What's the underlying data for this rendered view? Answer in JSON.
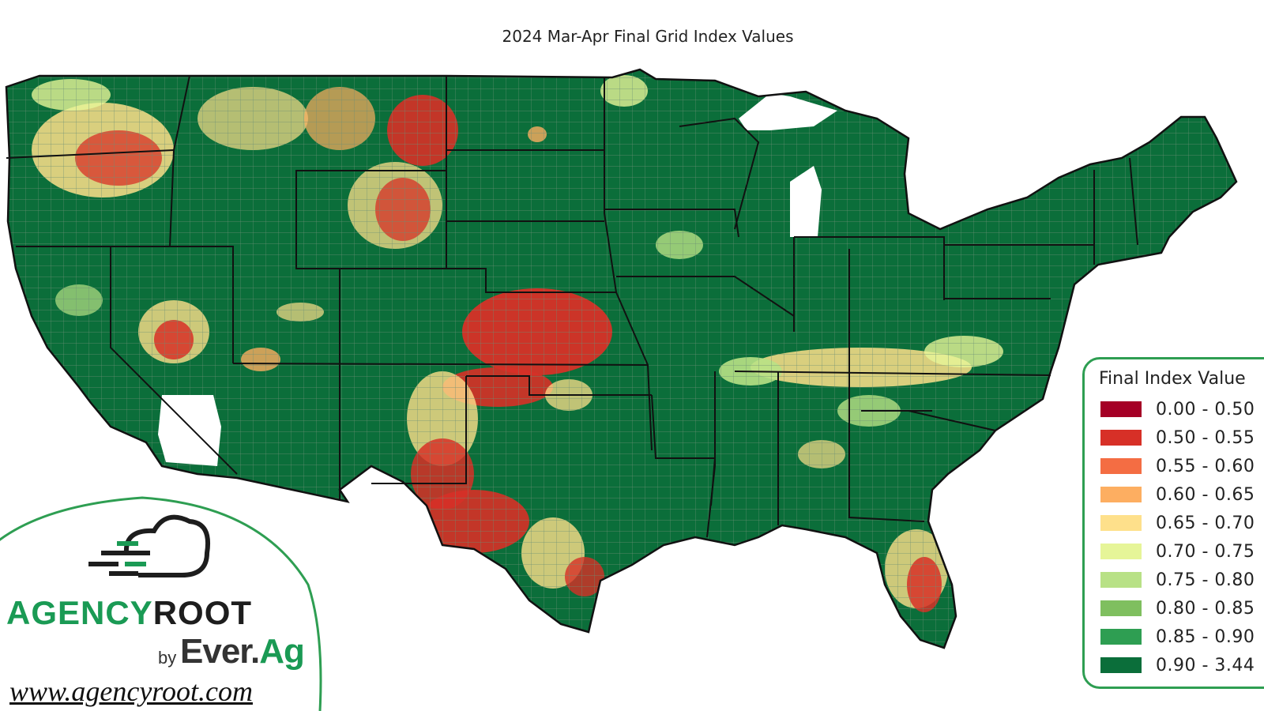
{
  "map": {
    "title": "2024 Mar-Apr Final Grid Index Values",
    "legend": {
      "title": "Final Index Value",
      "items": [
        {
          "label": "0.00 - 0.50",
          "color": "#a50026"
        },
        {
          "label": "0.50 - 0.55",
          "color": "#d73027"
        },
        {
          "label": "0.55 - 0.60",
          "color": "#f46d43"
        },
        {
          "label": "0.60 - 0.65",
          "color": "#fdae61"
        },
        {
          "label": "0.65 - 0.70",
          "color": "#fee08b"
        },
        {
          "label": "0.70 - 0.75",
          "color": "#e6f598"
        },
        {
          "label": "0.75 - 0.80",
          "color": "#b8e186"
        },
        {
          "label": "0.80 - 0.85",
          "color": "#7fbf5f"
        },
        {
          "label": "0.85 - 0.90",
          "color": "#2e9e52"
        },
        {
          "label": "0.90 - 3.44",
          "color": "#0b6e3a"
        }
      ]
    }
  },
  "branding": {
    "brand_green": "AGENCY",
    "brand_dark": "ROOT",
    "by": "by",
    "ever": "Ever.",
    "ag": "Ag",
    "url": "www.agencyroot.com",
    "logo_icon": "cloud-icon"
  },
  "colors": {
    "base_green": "#0b6e3a",
    "low_red": "#d73027",
    "mid_yellow": "#fee08b",
    "accent": "#1a9a54"
  }
}
